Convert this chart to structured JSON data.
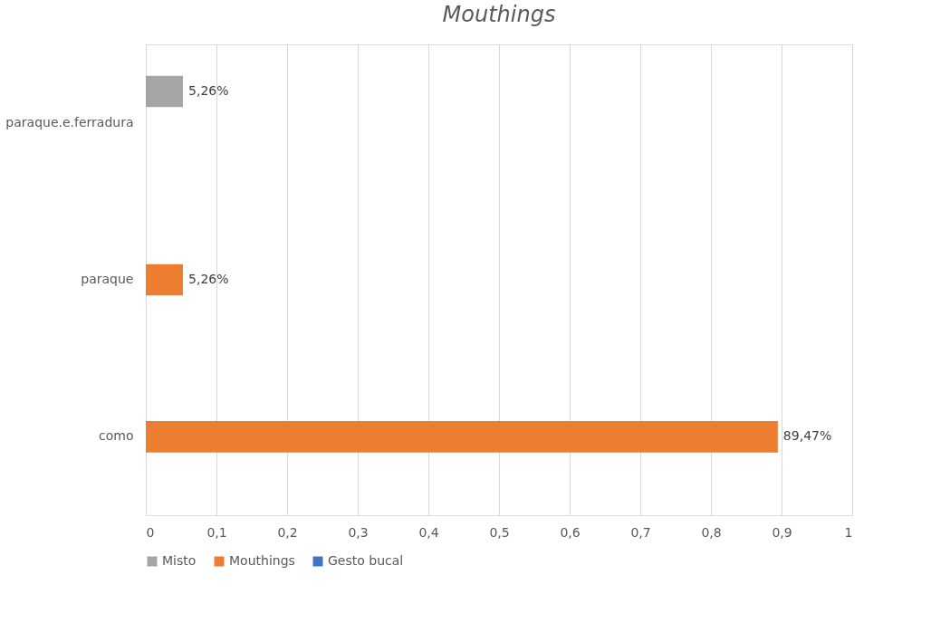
{
  "chart_data": {
    "type": "bar",
    "orientation": "horizontal",
    "title": "Mouthings",
    "categories": [
      "paraque.e.ferradura",
      "paraque",
      "como"
    ],
    "series": [
      {
        "name": "Misto",
        "color": "#a5a5a5",
        "values": [
          0.0526,
          null,
          null
        ],
        "value_labels": [
          "5,26%",
          null,
          null
        ]
      },
      {
        "name": "Mouthings",
        "color": "#ed7d31",
        "values": [
          null,
          0.0526,
          0.8947
        ],
        "value_labels": [
          null,
          "5,26%",
          "89,47%"
        ]
      },
      {
        "name": "Gesto bucal",
        "color": "#4472c4",
        "values": [
          null,
          null,
          null
        ],
        "value_labels": [
          null,
          null,
          null
        ]
      }
    ],
    "xlim": [
      0,
      1
    ],
    "xticks": [
      0,
      {
        "value": 0.1,
        "label": "0,1"
      },
      {
        "value": 0.2,
        "label": "0,2"
      },
      {
        "value": 0.3,
        "label": "0,3"
      },
      {
        "value": 0.4,
        "label": "0,4"
      },
      {
        "value": 0.5,
        "label": "0,5"
      },
      {
        "value": 0.6,
        "label": "0,6"
      },
      {
        "value": 0.7,
        "label": "0,7"
      },
      {
        "value": 0.8,
        "label": "0,8"
      },
      {
        "value": 0.9,
        "label": "0,9"
      },
      1
    ],
    "grid": "x",
    "legend": "bottom"
  }
}
